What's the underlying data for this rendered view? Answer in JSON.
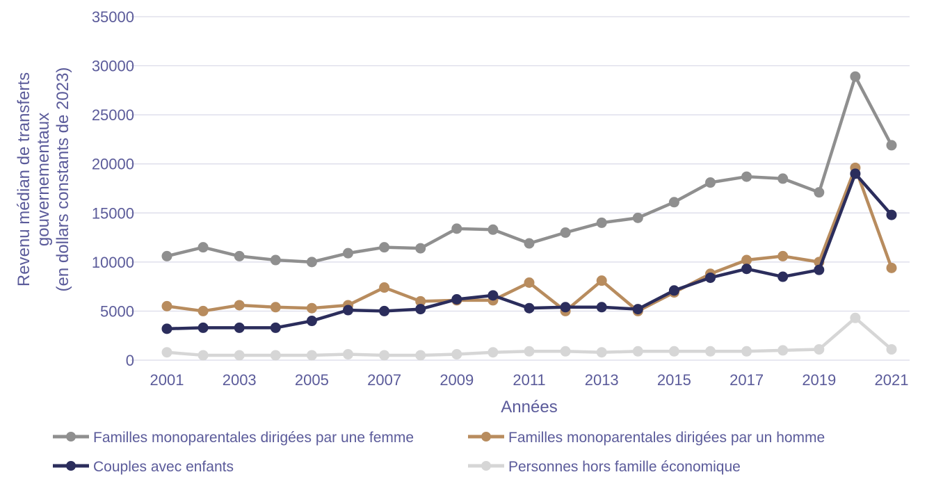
{
  "chart_data": {
    "type": "line",
    "title": "",
    "xlabel": "Années",
    "ylabel": [
      "Revenu médian de transferts",
      "gouvernementaux",
      "(en dollars constants de 2023)"
    ],
    "x": [
      2001,
      2002,
      2003,
      2004,
      2005,
      2006,
      2007,
      2008,
      2009,
      2010,
      2011,
      2012,
      2013,
      2014,
      2015,
      2016,
      2017,
      2018,
      2019,
      2020,
      2021
    ],
    "x_tick_labels": [
      "2001",
      "2003",
      "2005",
      "2007",
      "2009",
      "2011",
      "2013",
      "2015",
      "2017",
      "2019",
      "2021"
    ],
    "y_tick_labels": [
      "0",
      "5000",
      "10000",
      "15000",
      "20000",
      "25000",
      "30000",
      "35000"
    ],
    "ylim": [
      0,
      35000
    ],
    "grid": true,
    "legend_position": "bottom",
    "series": [
      {
        "name": "Familles monoparentales dirigées par une femme",
        "color": "#8f8f8f",
        "values": [
          10600,
          11500,
          10600,
          10200,
          10000,
          10900,
          11500,
          11400,
          13400,
          13300,
          11900,
          13000,
          14000,
          14500,
          16100,
          18100,
          18700,
          18500,
          17100,
          28900,
          21900
        ]
      },
      {
        "name": "Familles monoparentales dirigées par un homme",
        "color": "#b88c5e",
        "values": [
          5500,
          5000,
          5600,
          5400,
          5300,
          5600,
          7400,
          6000,
          6100,
          6100,
          7900,
          5000,
          8100,
          5000,
          6900,
          8800,
          10200,
          10600,
          10000,
          19600,
          9400
        ]
      },
      {
        "name": "Couples avec enfants",
        "color": "#2b2d5c",
        "values": [
          3200,
          3300,
          3300,
          3300,
          4000,
          5100,
          5000,
          5200,
          6200,
          6600,
          5300,
          5400,
          5400,
          5200,
          7100,
          8400,
          9300,
          8500,
          9200,
          19000,
          14800
        ]
      },
      {
        "name": "Personnes hors famille économique",
        "color": "#d6d6d6",
        "values": [
          800,
          500,
          500,
          500,
          500,
          600,
          500,
          500,
          600,
          800,
          900,
          900,
          800,
          900,
          900,
          900,
          900,
          1000,
          1100,
          4300,
          1100
        ]
      }
    ]
  }
}
